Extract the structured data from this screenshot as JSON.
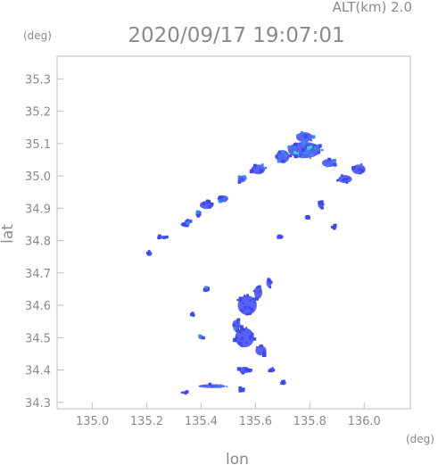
{
  "header": {
    "altitude": "ALT(km) 2.0",
    "timestamp": "2020/09/17 19:07:01"
  },
  "chart_data": {
    "type": "scatter",
    "xlabel": "lon",
    "ylabel": "lat",
    "x_unit": "(deg)",
    "y_unit": "(deg)",
    "xlim": [
      134.87,
      136.17
    ],
    "ylim": [
      34.28,
      35.37
    ],
    "xticks": [
      "135.0",
      "135.2",
      "135.4",
      "135.6",
      "135.8",
      "136.0"
    ],
    "xtick_values": [
      135.0,
      135.2,
      135.4,
      135.6,
      135.8,
      136.0
    ],
    "yticks": [
      "34.3",
      "34.4",
      "34.5",
      "34.6",
      "34.7",
      "34.8",
      "34.9",
      "35.0",
      "35.1",
      "35.2",
      "35.3"
    ],
    "ytick_values": [
      34.3,
      34.4,
      34.5,
      34.6,
      34.7,
      34.8,
      34.9,
      35.0,
      35.1,
      35.2,
      35.3
    ],
    "grid": false,
    "colors": {
      "low": "#3b47f2",
      "mid": "#3a86ee",
      "high": "#37d6c8"
    },
    "echo_clusters": [
      {
        "lon": 135.78,
        "lat": 35.08,
        "w": 0.12,
        "h": 0.05,
        "level": "high"
      },
      {
        "lon": 135.78,
        "lat": 35.12,
        "w": 0.06,
        "h": 0.03,
        "level": "mid"
      },
      {
        "lon": 135.7,
        "lat": 35.06,
        "w": 0.05,
        "h": 0.04,
        "level": "mid"
      },
      {
        "lon": 135.87,
        "lat": 35.04,
        "w": 0.05,
        "h": 0.025,
        "level": "mid"
      },
      {
        "lon": 135.93,
        "lat": 34.99,
        "w": 0.05,
        "h": 0.025,
        "level": "low"
      },
      {
        "lon": 135.98,
        "lat": 35.02,
        "w": 0.05,
        "h": 0.03,
        "level": "low"
      },
      {
        "lon": 135.61,
        "lat": 35.02,
        "w": 0.05,
        "h": 0.03,
        "level": "high"
      },
      {
        "lon": 135.55,
        "lat": 34.99,
        "w": 0.03,
        "h": 0.02,
        "level": "mid"
      },
      {
        "lon": 135.48,
        "lat": 34.93,
        "w": 0.04,
        "h": 0.02,
        "level": "mid"
      },
      {
        "lon": 135.42,
        "lat": 34.91,
        "w": 0.05,
        "h": 0.025,
        "level": "low"
      },
      {
        "lon": 135.39,
        "lat": 34.88,
        "w": 0.02,
        "h": 0.015,
        "level": "mid"
      },
      {
        "lon": 135.34,
        "lat": 34.85,
        "w": 0.03,
        "h": 0.015,
        "level": "low"
      },
      {
        "lon": 135.26,
        "lat": 34.81,
        "w": 0.03,
        "h": 0.01,
        "level": "low"
      },
      {
        "lon": 135.21,
        "lat": 34.76,
        "w": 0.02,
        "h": 0.015,
        "level": "low"
      },
      {
        "lon": 135.35,
        "lat": 34.86,
        "w": 0.02,
        "h": 0.01,
        "level": "high"
      },
      {
        "lon": 135.84,
        "lat": 34.91,
        "w": 0.02,
        "h": 0.02,
        "level": "low"
      },
      {
        "lon": 135.89,
        "lat": 34.84,
        "w": 0.015,
        "h": 0.015,
        "level": "low"
      },
      {
        "lon": 135.57,
        "lat": 34.6,
        "w": 0.07,
        "h": 0.06,
        "level": "low"
      },
      {
        "lon": 135.61,
        "lat": 34.64,
        "w": 0.03,
        "h": 0.04,
        "level": "low"
      },
      {
        "lon": 135.56,
        "lat": 34.5,
        "w": 0.07,
        "h": 0.06,
        "level": "low"
      },
      {
        "lon": 135.53,
        "lat": 34.54,
        "w": 0.03,
        "h": 0.03,
        "level": "mid"
      },
      {
        "lon": 135.62,
        "lat": 34.46,
        "w": 0.04,
        "h": 0.03,
        "level": "low"
      },
      {
        "lon": 135.65,
        "lat": 34.67,
        "w": 0.02,
        "h": 0.03,
        "level": "low"
      },
      {
        "lon": 135.4,
        "lat": 34.5,
        "w": 0.015,
        "h": 0.01,
        "level": "high"
      },
      {
        "lon": 135.37,
        "lat": 34.57,
        "w": 0.015,
        "h": 0.01,
        "level": "low"
      },
      {
        "lon": 135.42,
        "lat": 34.65,
        "w": 0.015,
        "h": 0.01,
        "level": "mid"
      },
      {
        "lon": 135.56,
        "lat": 34.4,
        "w": 0.04,
        "h": 0.02,
        "level": "low"
      },
      {
        "lon": 135.66,
        "lat": 34.4,
        "w": 0.02,
        "h": 0.015,
        "level": "low"
      },
      {
        "lon": 135.44,
        "lat": 34.35,
        "w": 0.1,
        "h": 0.012,
        "level": "high"
      },
      {
        "lon": 135.34,
        "lat": 34.33,
        "w": 0.02,
        "h": 0.01,
        "level": "low"
      },
      {
        "lon": 135.55,
        "lat": 34.34,
        "w": 0.02,
        "h": 0.01,
        "level": "low"
      },
      {
        "lon": 135.7,
        "lat": 34.36,
        "w": 0.02,
        "h": 0.01,
        "level": "mid"
      },
      {
        "lon": 135.79,
        "lat": 34.87,
        "w": 0.01,
        "h": 0.01,
        "level": "low"
      },
      {
        "lon": 135.69,
        "lat": 34.81,
        "w": 0.015,
        "h": 0.01,
        "level": "low"
      }
    ]
  }
}
